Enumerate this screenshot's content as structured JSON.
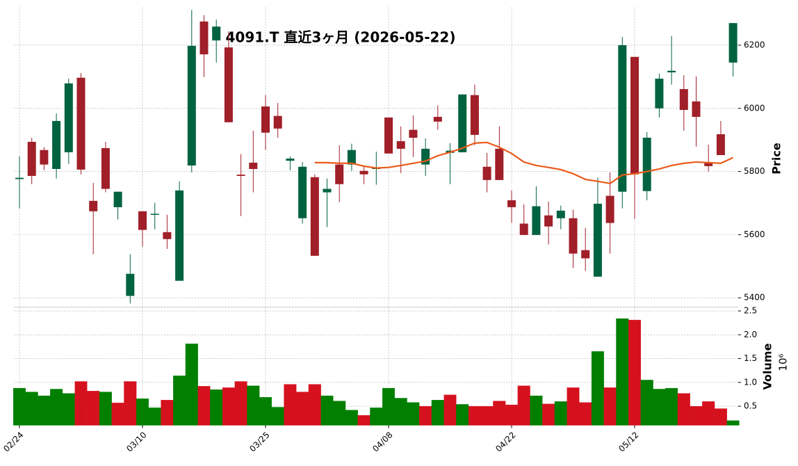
{
  "chart_data": {
    "type": "candlestick",
    "title": "4091.T  直近3ヶ月  (2026-05-22)",
    "categories": [
      "02/24",
      null,
      null,
      null,
      null,
      null,
      null,
      null,
      null,
      null,
      "03/10",
      null,
      null,
      null,
      null,
      null,
      null,
      null,
      null,
      null,
      "03/25",
      null,
      null,
      null,
      null,
      null,
      null,
      null,
      null,
      null,
      "04/08",
      null,
      null,
      null,
      null,
      null,
      null,
      null,
      null,
      null,
      "04/22",
      null,
      null,
      null,
      null,
      null,
      null,
      null,
      null,
      null,
      "05/12",
      null,
      null,
      null,
      null,
      null,
      null,
      null,
      null
    ],
    "open": [
      5776,
      5894,
      5868,
      5808,
      5861,
      6097,
      5707,
      5874,
      5687,
      5406,
      5674,
      5664,
      5608,
      5454,
      5819,
      6275,
      6215,
      6193,
      5790,
      5828,
      6006,
      5976,
      5834,
      5652,
      5782,
      5734,
      5822,
      5822,
      5802,
      5808,
      5971,
      5896,
      5932,
      5822,
      5973,
      5859,
      5861,
      6042,
      5815,
      5872,
      5709,
      5635,
      5599,
      5661,
      5652,
      5652,
      5551,
      5467,
      5723,
      5736,
      6163,
      5738,
      6000,
      6114,
      6061,
      6022,
      5828,
      5918,
      6145
    ],
    "high": [
      5848,
      5907,
      5877,
      5984,
      6094,
      6112,
      5764,
      5894,
      5736,
      5538,
      5674,
      5701,
      5663,
      5769,
      6312,
      6295,
      6281,
      6244,
      5855,
      5929,
      6042,
      6017,
      5848,
      5830,
      5791,
      5778,
      5883,
      5888,
      5819,
      5863,
      5971,
      5943,
      5978,
      5905,
      6009,
      5890,
      6044,
      6075,
      5859,
      5943,
      5740,
      5696,
      5753,
      5705,
      5692,
      5679,
      5621,
      5780,
      5797,
      6226,
      6163,
      5925,
      6110,
      6229,
      6105,
      6101,
      5885,
      5960,
      6270
    ],
    "low": [
      5683,
      5760,
      5804,
      5778,
      5824,
      5791,
      5538,
      5734,
      5648,
      5382,
      5562,
      5617,
      5555,
      5454,
      5797,
      6099,
      6145,
      5956,
      5659,
      5734,
      5868,
      5907,
      5804,
      5635,
      5533,
      5624,
      5703,
      5802,
      5760,
      5758,
      5857,
      5795,
      5846,
      5786,
      5932,
      5760,
      5861,
      5883,
      5734,
      5773,
      5637,
      5599,
      5599,
      5569,
      5617,
      5494,
      5485,
      5467,
      5540,
      5683,
      5650,
      5709,
      5971,
      6075,
      5929,
      5879,
      5800,
      5852,
      6101
    ],
    "close": [
      5780,
      5786,
      5822,
      5960,
      6079,
      5806,
      5674,
      5745,
      5736,
      5476,
      5615,
      5666,
      5586,
      5740,
      6198,
      6171,
      6259,
      5956,
      5786,
      5808,
      5923,
      5936,
      5841,
      5815,
      5533,
      5745,
      5760,
      5868,
      5791,
      5812,
      5857,
      5872,
      5907,
      5872,
      5958,
      5866,
      6044,
      5916,
      5773,
      5773,
      5687,
      5599,
      5690,
      5626,
      5676,
      5540,
      5525,
      5698,
      5637,
      6200,
      5791,
      5907,
      6094,
      6119,
      5995,
      5973,
      5817,
      5852,
      6270
    ],
    "up_color": "#00633f",
    "down_color": "#a01f28",
    "moving_average": {
      "color": "#ea5a1a",
      "values": [
        null,
        null,
        null,
        null,
        null,
        null,
        null,
        null,
        null,
        null,
        null,
        null,
        null,
        null,
        null,
        null,
        null,
        null,
        null,
        null,
        null,
        null,
        null,
        null,
        5828,
        5828,
        5826,
        5826,
        5817,
        5811,
        5813,
        5819,
        5826,
        5833,
        5850,
        5861,
        5874,
        5890,
        5892,
        5877,
        5857,
        5830,
        5819,
        5813,
        5806,
        5793,
        5775,
        5769,
        5762,
        5789,
        5793,
        5800,
        5808,
        5819,
        5826,
        5830,
        5828,
        5826,
        5844
      ]
    },
    "ylabel": "Price",
    "ylim": [
      5370,
      6320
    ],
    "yticks": [
      5400,
      5600,
      5800,
      6000,
      6200
    ],
    "grid": true,
    "volume": {
      "ylabel": "Volume",
      "scale_label": "10⁶",
      "values": [
        0.88,
        0.8,
        0.72,
        0.86,
        0.77,
        1.02,
        0.82,
        0.8,
        0.57,
        1.02,
        0.66,
        0.47,
        0.63,
        1.14,
        1.81,
        0.92,
        0.85,
        0.89,
        1.02,
        0.93,
        0.69,
        0.48,
        0.96,
        0.8,
        0.96,
        0.72,
        0.61,
        0.42,
        0.31,
        0.47,
        0.88,
        0.67,
        0.58,
        0.5,
        0.63,
        0.74,
        0.54,
        0.5,
        0.5,
        0.61,
        0.53,
        0.93,
        0.72,
        0.55,
        0.6,
        0.89,
        0.58,
        1.65,
        0.89,
        2.34,
        2.31,
        1.05,
        0.86,
        0.88,
        0.77,
        0.5,
        0.6,
        0.45,
        0.2
      ],
      "colors": [
        "#007f00",
        "#007f00",
        "#007f00",
        "#007f00",
        "#007f00",
        "#d5111e",
        "#d5111e",
        "#007f00",
        "#d5111e",
        "#d5111e",
        "#007f00",
        "#007f00",
        "#d5111e",
        "#007f00",
        "#007f00",
        "#d5111e",
        "#007f00",
        "#d5111e",
        "#d5111e",
        "#007f00",
        "#007f00",
        "#007f00",
        "#d5111e",
        "#d5111e",
        "#d5111e",
        "#007f00",
        "#007f00",
        "#007f00",
        "#d5111e",
        "#007f00",
        "#007f00",
        "#007f00",
        "#007f00",
        "#d5111e",
        "#007f00",
        "#d5111e",
        "#007f00",
        "#d5111e",
        "#d5111e",
        "#d5111e",
        "#d5111e",
        "#d5111e",
        "#007f00",
        "#d5111e",
        "#007f00",
        "#d5111e",
        "#d5111e",
        "#007f00",
        "#d5111e",
        "#007f00",
        "#d5111e",
        "#007f00",
        "#007f00",
        "#007f00",
        "#d5111e",
        "#d5111e",
        "#d5111e",
        "#d5111e",
        "#007f00"
      ],
      "ylim": [
        0.1,
        2.6
      ],
      "yticks": [
        0.5,
        {
          "value": 1,
          "label": "1.0"
        },
        1.5,
        {
          "value": 2,
          "label": "2.0"
        },
        2.5
      ]
    }
  }
}
